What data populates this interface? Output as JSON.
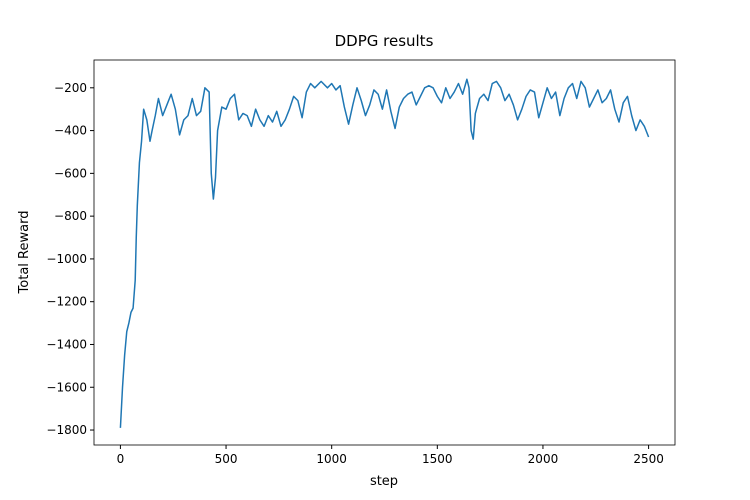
{
  "chart_data": {
    "type": "line",
    "title": "DDPG results",
    "x_label": "step",
    "y_label": "Total Reward",
    "xlim": [
      -125,
      2625
    ],
    "ylim": [
      -1870,
      -70
    ],
    "xticks": [
      0,
      500,
      1000,
      1500,
      2000,
      2500
    ],
    "yticks": [
      {
        "value": -1800,
        "label": "−1800"
      },
      {
        "value": -1600,
        "label": "−1600"
      },
      {
        "value": -1400,
        "label": "−1400"
      },
      {
        "value": -1200,
        "label": "−1200"
      },
      {
        "value": -1000,
        "label": "−1000"
      },
      {
        "value": -800,
        "label": "−800"
      },
      {
        "value": -600,
        "label": "−600"
      },
      {
        "value": -400,
        "label": "−400"
      },
      {
        "value": -200,
        "label": "−200"
      }
    ],
    "color": "#1f77b4",
    "x": [
      0,
      10,
      20,
      30,
      40,
      50,
      60,
      70,
      75,
      80,
      90,
      100,
      110,
      125,
      140,
      150,
      165,
      180,
      200,
      220,
      240,
      260,
      280,
      300,
      320,
      340,
      360,
      380,
      400,
      420,
      430,
      440,
      450,
      460,
      480,
      500,
      520,
      540,
      560,
      580,
      600,
      620,
      640,
      660,
      680,
      700,
      720,
      740,
      760,
      780,
      800,
      820,
      840,
      860,
      880,
      900,
      920,
      950,
      980,
      1000,
      1020,
      1040,
      1060,
      1080,
      1100,
      1120,
      1140,
      1160,
      1180,
      1200,
      1220,
      1240,
      1260,
      1280,
      1300,
      1320,
      1340,
      1360,
      1380,
      1400,
      1420,
      1440,
      1460,
      1480,
      1500,
      1520,
      1540,
      1560,
      1580,
      1600,
      1620,
      1640,
      1650,
      1660,
      1670,
      1680,
      1700,
      1720,
      1740,
      1760,
      1780,
      1800,
      1820,
      1840,
      1860,
      1880,
      1900,
      1920,
      1940,
      1960,
      1980,
      2000,
      2020,
      2040,
      2060,
      2080,
      2100,
      2120,
      2140,
      2160,
      2180,
      2200,
      2220,
      2240,
      2260,
      2280,
      2300,
      2320,
      2340,
      2360,
      2380,
      2400,
      2420,
      2440,
      2460,
      2480,
      2500
    ],
    "values": [
      -1790,
      -1600,
      -1450,
      -1340,
      -1300,
      -1250,
      -1230,
      -1100,
      -900,
      -750,
      -550,
      -450,
      -300,
      -350,
      -450,
      -400,
      -330,
      -250,
      -330,
      -280,
      -230,
      -300,
      -420,
      -350,
      -330,
      -250,
      -330,
      -310,
      -200,
      -220,
      -600,
      -720,
      -620,
      -400,
      -290,
      -300,
      -250,
      -230,
      -350,
      -320,
      -330,
      -380,
      -300,
      -350,
      -380,
      -330,
      -360,
      -310,
      -380,
      -350,
      -300,
      -240,
      -260,
      -340,
      -220,
      -180,
      -200,
      -170,
      -200,
      -180,
      -210,
      -190,
      -290,
      -370,
      -280,
      -200,
      -260,
      -330,
      -280,
      -210,
      -230,
      -300,
      -210,
      -310,
      -390,
      -290,
      -250,
      -230,
      -220,
      -280,
      -240,
      -200,
      -190,
      -200,
      -240,
      -270,
      -200,
      -250,
      -220,
      -180,
      -230,
      -160,
      -200,
      -400,
      -440,
      -320,
      -250,
      -230,
      -260,
      -180,
      -170,
      -200,
      -260,
      -230,
      -280,
      -350,
      -300,
      -240,
      -210,
      -220,
      -340,
      -270,
      -200,
      -250,
      -220,
      -330,
      -250,
      -200,
      -180,
      -250,
      -170,
      -200,
      -290,
      -250,
      -210,
      -270,
      -250,
      -210,
      -300,
      -360,
      -270,
      -240,
      -330,
      -400,
      -350,
      -380,
      -430
    ]
  }
}
